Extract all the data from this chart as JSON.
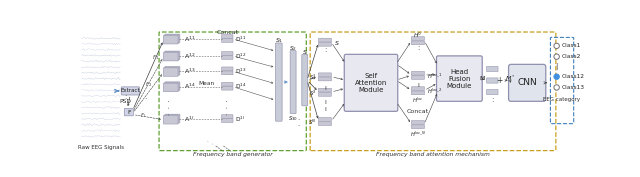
{
  "bg_color": "#ffffff",
  "stack_fc": "#c8c8d4",
  "stack_ec": "#9898b0",
  "rect_fc": "#d0d0dc",
  "rect_ec": "#9898b0",
  "module_fc": "#e8e8f0",
  "module_ec": "#9090b0",
  "cnn_fc": "#e0e4ec",
  "cnn_ec": "#9090b0",
  "arrow_color": "#404040",
  "blue_arrow": "#6090c8",
  "green_dashed": "#60a030",
  "yellow_dashed": "#c8a020",
  "blue_dashed": "#4080c0",
  "text_color": "#202020",
  "raw_eeg_label": "Raw EEG Signals",
  "extract_label": "Extract",
  "psd_label": "PSD",
  "f_label": "F",
  "concat_label_top": "Concat",
  "mean_label": "Mean",
  "self_attn_label": "Self\nAttention\nModule",
  "head_fusion_label": "Head\nFusion\nModule",
  "cnn_label": "CNN",
  "concat_label_mid": "Concat",
  "freq_gen_label": "Frequency band generator",
  "freq_attn_label": "Frequency band attention mechanism",
  "eeg_category_label": "EEG category",
  "A_labels": [
    "A$^{11}$",
    "A$^{12}$",
    "A$^{13}$",
    "A$^{14}$",
    "A$^{1l}$"
  ],
  "D_labels": [
    "D$^{11}$",
    "D$^{12}$",
    "D$^{13}$",
    "D$^{14}$",
    "D$^{1l}$"
  ],
  "S_labels": [
    "S$^1$",
    "S$^2$",
    "I",
    "S$^N$"
  ],
  "Hloc_labels": [
    "H$^{loc\\_1}$",
    "H$^{loc\\_2}$",
    "I",
    "H$^{loc\\_N}$"
  ],
  "class_labels": [
    "Class1",
    "Class2",
    "!",
    "Class12",
    "Class13"
  ],
  "class_filled": [
    false,
    false,
    false,
    true,
    false
  ]
}
